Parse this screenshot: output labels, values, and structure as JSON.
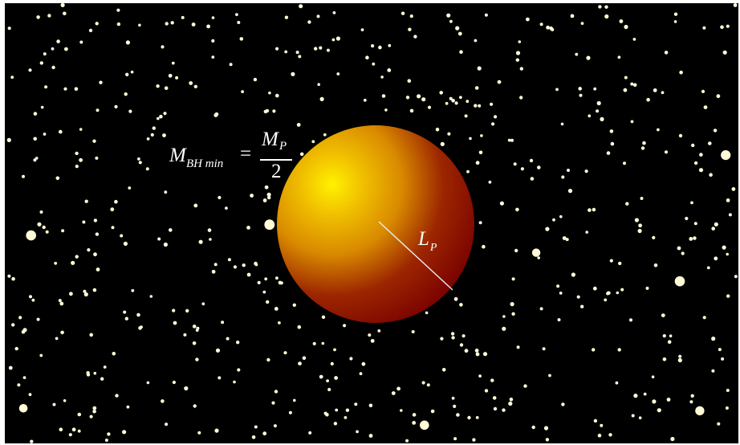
{
  "diagram": {
    "formula": {
      "lhs_symbol": "M",
      "lhs_subscript": "BH min",
      "equals": "=",
      "numerator_symbol": "M",
      "numerator_subscript": "P",
      "denominator": "2"
    },
    "radius_label": {
      "symbol": "L",
      "subscript": "P"
    },
    "colors": {
      "background": "#000000",
      "star": "#fffbd6",
      "sphere_highlight": "#fff200",
      "sphere_mid": "#d98a00",
      "sphere_edge": "#7d0500",
      "text": "#ffffff"
    }
  }
}
